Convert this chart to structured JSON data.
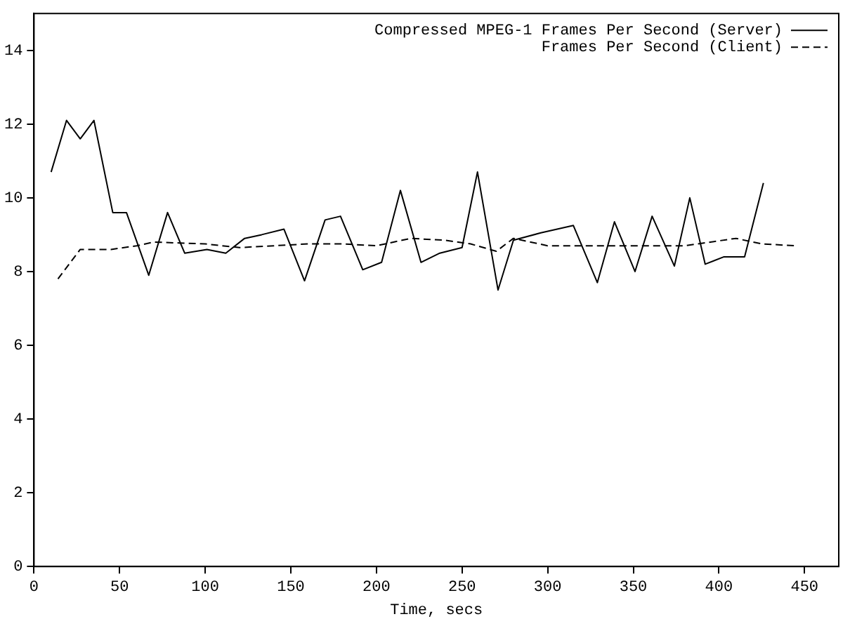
{
  "chart_data": {
    "type": "line",
    "xlabel": "Time, secs",
    "xlim": [
      0,
      470
    ],
    "xticks": [
      0,
      50,
      100,
      150,
      200,
      250,
      300,
      350,
      400,
      450
    ],
    "ylim": [
      0,
      15
    ],
    "yticks": [
      0,
      2,
      4,
      6,
      8,
      10,
      12,
      14
    ],
    "grid": false,
    "legend": "top right",
    "marker": "none",
    "series": [
      {
        "name": "Compressed MPEG-1 Frames Per Second (Server)",
        "color": "#000000",
        "line_style": "solid",
        "x": [
          10,
          19,
          27,
          35,
          46,
          54,
          67,
          78,
          88,
          101,
          112,
          123,
          133,
          146,
          158,
          170,
          179,
          192,
          203,
          214,
          226,
          237,
          250,
          259,
          271,
          280,
          296,
          315,
          329,
          339,
          351,
          361,
          374,
          383,
          392,
          403,
          415,
          426
        ],
        "values": [
          10.7,
          12.1,
          11.6,
          12.1,
          9.6,
          9.6,
          7.9,
          9.6,
          8.5,
          8.6,
          8.5,
          8.9,
          9.0,
          9.15,
          7.75,
          9.4,
          9.5,
          8.05,
          8.25,
          10.2,
          8.25,
          8.5,
          8.65,
          10.7,
          7.5,
          8.85,
          9.05,
          9.25,
          7.7,
          9.35,
          8.0,
          9.5,
          8.15,
          10.0,
          8.2,
          8.4,
          8.4,
          10.4
        ]
      },
      {
        "name": "Frames Per Second (Client)",
        "color": "#000000",
        "line_style": "dashed",
        "x": [
          14,
          27,
          35,
          45,
          60,
          70,
          100,
          120,
          140,
          160,
          180,
          200,
          220,
          240,
          255,
          270,
          280,
          300,
          320,
          340,
          360,
          380,
          395,
          410,
          425,
          445
        ],
        "values": [
          7.8,
          8.6,
          8.6,
          8.6,
          8.7,
          8.8,
          8.75,
          8.65,
          8.7,
          8.75,
          8.75,
          8.7,
          8.9,
          8.85,
          8.75,
          8.55,
          8.9,
          8.7,
          8.7,
          8.7,
          8.7,
          8.7,
          8.8,
          8.9,
          8.75,
          8.7
        ]
      }
    ]
  }
}
